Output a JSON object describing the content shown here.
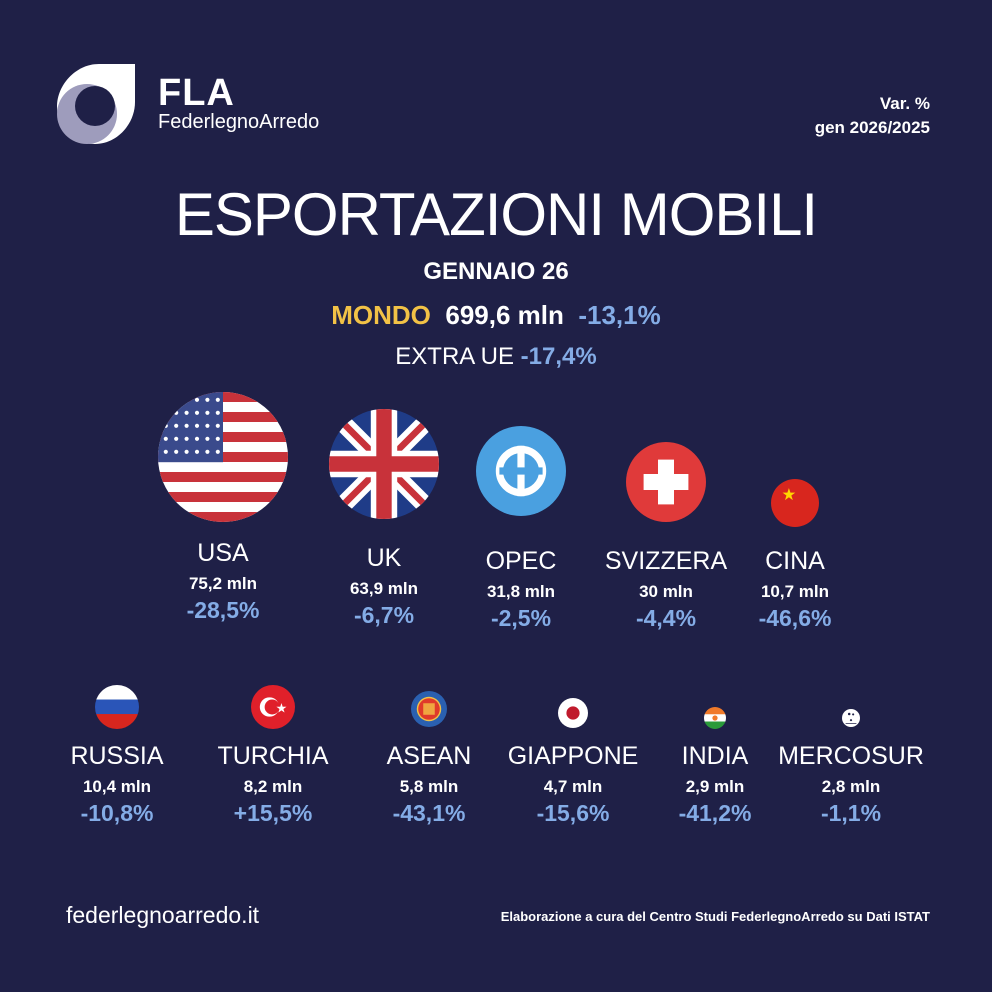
{
  "brand": {
    "name": "FLA",
    "full": "FederlegnoArredo"
  },
  "period": {
    "line1": "Var. %",
    "line2": "gen 2026/2025"
  },
  "title": "ESPORTAZIONI MOBILI",
  "subtitle": "GENNAIO 26",
  "world": {
    "label": "MONDO",
    "value": "699,6 mln",
    "pct": "-13,1%"
  },
  "extra_ue": {
    "label": "EXTRA UE",
    "pct": "-17,4%"
  },
  "colors": {
    "background": "#1f2047",
    "accent": "#f2c246",
    "pct": "#84ace6"
  },
  "countries": [
    {
      "name": "USA",
      "value": "75,2 mln",
      "pct": "-28,5%"
    },
    {
      "name": "UK",
      "value": "63,9 mln",
      "pct": "-6,7%"
    },
    {
      "name": "OPEC",
      "value": "31,8 mln",
      "pct": "-2,5%"
    },
    {
      "name": "SVIZZERA",
      "value": "30 mln",
      "pct": "-4,4%"
    },
    {
      "name": "CINA",
      "value": "10,7 mln",
      "pct": "-46,6%"
    },
    {
      "name": "RUSSIA",
      "value": "10,4 mln",
      "pct": "-10,8%"
    },
    {
      "name": "TURCHIA",
      "value": "8,2 mln",
      "pct": "+15,5%"
    },
    {
      "name": "ASEAN",
      "value": "5,8 mln",
      "pct": "-43,1%"
    },
    {
      "name": "GIAPPONE",
      "value": "4,7 mln",
      "pct": "-15,6%"
    },
    {
      "name": "INDIA",
      "value": "2,9 mln",
      "pct": "-41,2%"
    },
    {
      "name": "MERCOSUR",
      "value": "2,8 mln",
      "pct": "-1,1%"
    }
  ],
  "footer": {
    "site": "federlegnoarredo.it",
    "source": "Elaborazione a cura del Centro Studi FederlegnoArredo su Dati ISTAT"
  }
}
